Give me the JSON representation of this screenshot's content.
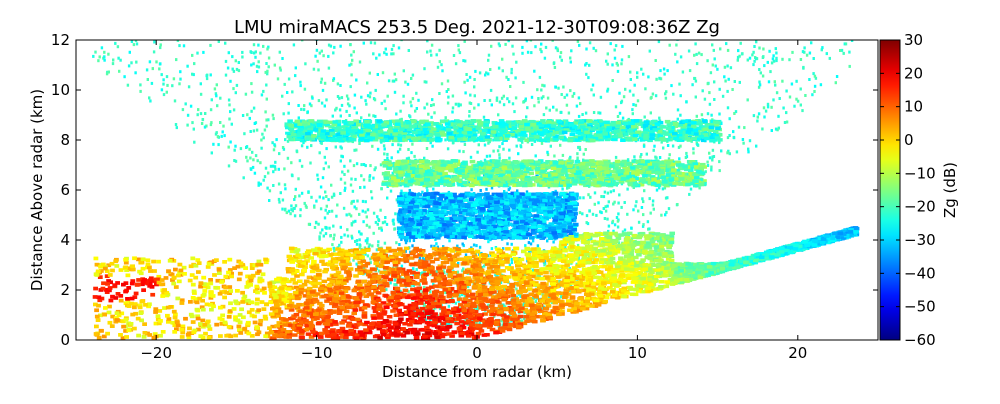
{
  "chart_data": {
    "type": "heatmap",
    "title": "LMU miraMACS 253.5 Deg. 2021-12-30T09:08:36Z  Zg",
    "xlabel": "Distance from radar (km)",
    "ylabel": "Distance Above radar  (km)",
    "xlim": [
      -25,
      25
    ],
    "ylim": [
      0,
      12
    ],
    "xticks": [
      -20,
      -10,
      0,
      10,
      20
    ],
    "yticks": [
      0,
      2,
      4,
      6,
      8,
      10,
      12
    ],
    "colorbar": {
      "label": "Zg (dB)",
      "range": [
        -60,
        30
      ],
      "ticks": [
        30,
        20,
        10,
        0,
        -10,
        -20,
        -30,
        -40,
        -50,
        -60
      ],
      "colormap": "jet"
    },
    "grid": false,
    "scan_elevation_deg": 10,
    "layers": [
      {
        "z_bottom": 7.9,
        "z_top": 8.7,
        "x_from": -12,
        "x_to": 15,
        "zg_db": -22
      },
      {
        "z_bottom": 6.1,
        "z_top": 7.1,
        "x_from": -6,
        "x_to": 14,
        "zg_db": -17
      },
      {
        "z_bottom": 4.0,
        "z_top": 5.8,
        "x_from": -5,
        "x_to": 6,
        "zg_db": -32
      },
      {
        "z_bottom": 0.0,
        "z_top": 3.6,
        "x_from": -13,
        "x_to": 23.5,
        "zg_db": 15
      }
    ]
  }
}
